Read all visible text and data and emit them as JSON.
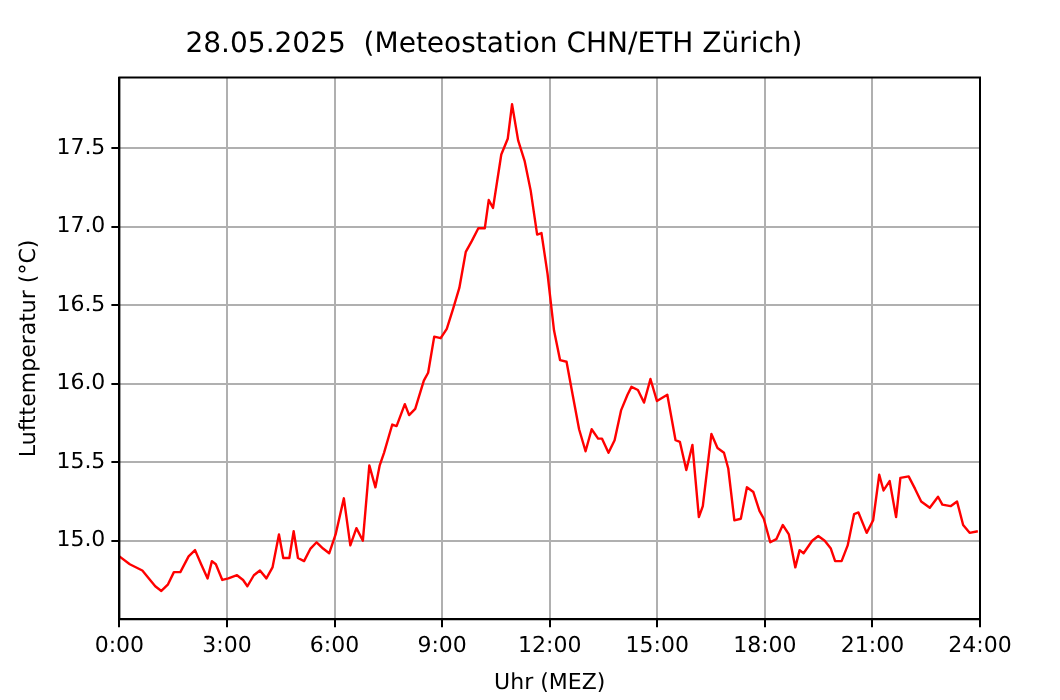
{
  "chart_data": {
    "type": "line",
    "title": "28.05.2025  (Meteostation CHN/ETH Zürich)",
    "xlabel": "Uhr (MEZ)",
    "ylabel": "Lufttemperatur (°C)",
    "x": [
      0,
      0.29,
      0.64,
      1.0,
      1.17,
      1.35,
      1.52,
      1.7,
      1.93,
      2.11,
      2.28,
      2.46,
      2.58,
      2.69,
      2.87,
      3.04,
      3.28,
      3.45,
      3.57,
      3.75,
      3.92,
      4.1,
      4.27,
      4.45,
      4.57,
      4.74,
      4.86,
      4.98,
      5.15,
      5.33,
      5.5,
      5.68,
      5.85,
      6.03,
      6.26,
      6.44,
      6.61,
      6.79,
      6.97,
      7.14,
      7.26,
      7.38,
      7.61,
      7.73,
      7.96,
      8.08,
      8.25,
      8.49,
      8.61,
      8.78,
      8.96,
      9.13,
      9.31,
      9.48,
      9.66,
      9.83,
      10.01,
      10.19,
      10.3,
      10.42,
      10.65,
      10.83,
      10.95,
      11.12,
      11.3,
      11.47,
      11.65,
      11.77,
      11.94,
      12.12,
      12.29,
      12.47,
      12.64,
      12.82,
      13.0,
      13.17,
      13.35,
      13.46,
      13.64,
      13.81,
      13.99,
      14.17,
      14.28,
      14.46,
      14.63,
      14.81,
      14.99,
      15.28,
      15.51,
      15.63,
      15.81,
      15.98,
      16.16,
      16.27,
      16.51,
      16.68,
      16.86,
      16.98,
      17.15,
      17.33,
      17.5,
      17.68,
      17.85,
      17.97,
      18.15,
      18.32,
      18.5,
      18.67,
      18.85,
      18.97,
      19.08,
      19.32,
      19.49,
      19.67,
      19.84,
      19.96,
      20.14,
      20.31,
      20.49,
      20.61,
      20.84,
      21.02,
      21.19,
      21.31,
      21.48,
      21.66,
      21.78,
      22.01,
      22.19,
      22.36,
      22.6,
      22.83,
      22.95,
      23.18,
      23.36,
      23.53,
      23.71,
      23.94
    ],
    "series": [
      {
        "color": "#ff0000",
        "values": [
          14.9,
          14.85,
          14.81,
          14.71,
          14.68,
          14.72,
          14.8,
          14.8,
          14.9,
          14.94,
          14.85,
          14.76,
          14.87,
          14.85,
          14.75,
          14.76,
          14.78,
          14.75,
          14.71,
          14.78,
          14.81,
          14.76,
          14.83,
          15.04,
          14.89,
          14.89,
          15.06,
          14.89,
          14.87,
          14.95,
          14.99,
          14.95,
          14.92,
          15.04,
          15.27,
          14.97,
          15.08,
          15.0,
          15.48,
          15.34,
          15.48,
          15.56,
          15.74,
          15.73,
          15.87,
          15.8,
          15.84,
          16.02,
          16.07,
          16.3,
          16.29,
          16.35,
          16.48,
          16.61,
          16.84,
          16.91,
          16.99,
          16.99,
          17.17,
          17.12,
          17.46,
          17.56,
          17.78,
          17.55,
          17.42,
          17.23,
          16.95,
          16.96,
          16.7,
          16.34,
          16.15,
          16.14,
          15.93,
          15.71,
          15.57,
          15.71,
          15.65,
          15.65,
          15.56,
          15.64,
          15.83,
          15.93,
          15.98,
          15.96,
          15.88,
          16.03,
          15.89,
          15.93,
          15.64,
          15.63,
          15.45,
          15.61,
          15.15,
          15.22,
          15.68,
          15.59,
          15.56,
          15.46,
          15.13,
          15.14,
          15.34,
          15.31,
          15.19,
          15.14,
          14.99,
          15.01,
          15.1,
          15.04,
          14.83,
          14.94,
          14.92,
          15.0,
          15.03,
          15.0,
          14.95,
          14.87,
          14.87,
          14.97,
          15.17,
          15.18,
          15.05,
          15.13,
          15.42,
          15.32,
          15.38,
          15.15,
          15.4,
          15.41,
          15.33,
          15.25,
          15.21,
          15.28,
          15.23,
          15.22,
          15.25,
          15.1,
          15.05,
          15.06
        ]
      }
    ],
    "xlim": [
      0,
      24
    ],
    "xticks": [
      {
        "value": 0,
        "label": "0:00"
      },
      {
        "value": 3,
        "label": "3:00"
      },
      {
        "value": 6,
        "label": "6:00"
      },
      {
        "value": 9,
        "label": "9:00"
      },
      {
        "value": 12,
        "label": "12:00"
      },
      {
        "value": 15,
        "label": "15:00"
      },
      {
        "value": 18,
        "label": "18:00"
      },
      {
        "value": 21,
        "label": "21:00"
      },
      {
        "value": 24,
        "label": "24:00"
      }
    ],
    "ylim": [
      14.5,
      17.95
    ],
    "yticks": [
      {
        "value": 15,
        "label": "15.0"
      },
      {
        "value": 15.5,
        "label": "15.5"
      },
      {
        "value": 16,
        "label": "16.0"
      },
      {
        "value": 16.5,
        "label": "16.5"
      },
      {
        "value": 17,
        "label": "17.0"
      },
      {
        "value": 17.5,
        "label": "17.5"
      }
    ],
    "grid": true,
    "legend": false,
    "marker": "none",
    "line_style": "solid"
  }
}
